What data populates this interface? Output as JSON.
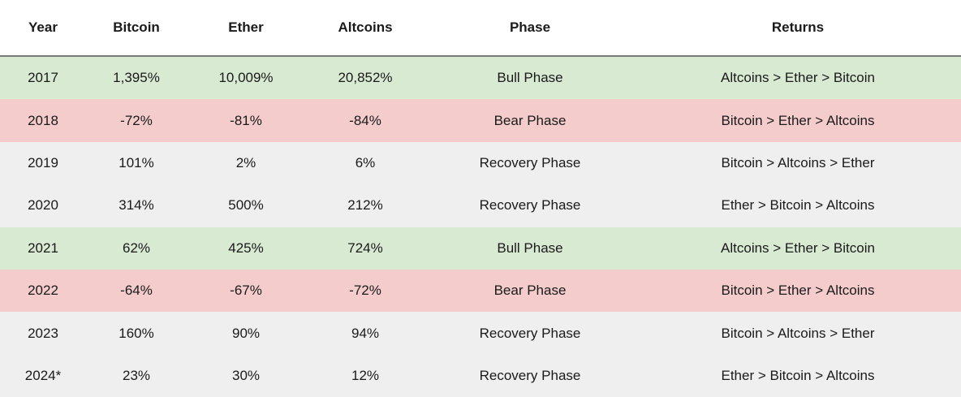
{
  "columns": [
    "Year",
    "Bitcoin",
    "Ether",
    "Altcoins",
    "Phase",
    "Returns"
  ],
  "rows": [
    {
      "year": "2017",
      "bitcoin": "1,395%",
      "ether": "10,009%",
      "altcoins": "20,852%",
      "phase": "Bull Phase",
      "returns": "Altcoins > Ether > Bitcoin"
    },
    {
      "year": "2018",
      "bitcoin": "-72%",
      "ether": "-81%",
      "altcoins": "-84%",
      "phase": "Bear Phase",
      "returns": "Bitcoin > Ether > Altcoins"
    },
    {
      "year": "2019",
      "bitcoin": "101%",
      "ether": "2%",
      "altcoins": "6%",
      "phase": "Recovery Phase",
      "returns": "Bitcoin > Altcoins > Ether"
    },
    {
      "year": "2020",
      "bitcoin": "314%",
      "ether": "500%",
      "altcoins": "212%",
      "phase": "Recovery Phase",
      "returns": "Ether > Bitcoin > Altcoins"
    },
    {
      "year": "2021",
      "bitcoin": "62%",
      "ether": "425%",
      "altcoins": "724%",
      "phase": "Bull Phase",
      "returns": "Altcoins > Ether > Bitcoin"
    },
    {
      "year": "2022",
      "bitcoin": "-64%",
      "ether": "-67%",
      "altcoins": "-72%",
      "phase": "Bear Phase",
      "returns": "Bitcoin > Ether > Altcoins"
    },
    {
      "year": "2023",
      "bitcoin": "160%",
      "ether": "90%",
      "altcoins": "94%",
      "phase": "Recovery Phase",
      "returns": "Bitcoin > Altcoins > Ether"
    },
    {
      "year": "2024*",
      "bitcoin": "23%",
      "ether": "30%",
      "altcoins": "12%",
      "phase": "Recovery Phase",
      "returns": "Ether > Bitcoin > Altcoins"
    }
  ],
  "colors": {
    "bull": "#d9ead3",
    "bear": "#f4cccc",
    "recovery": "#efefef",
    "header_rule": "#7a7a7a"
  },
  "chart_data": {
    "type": "table",
    "columns": [
      "Year",
      "Bitcoin",
      "Ether",
      "Altcoins",
      "Phase",
      "Returns"
    ],
    "rows": [
      [
        "2017",
        "1,395%",
        "10,009%",
        "20,852%",
        "Bull Phase",
        "Altcoins > Ether > Bitcoin"
      ],
      [
        "2018",
        "-72%",
        "-81%",
        "-84%",
        "Bear Phase",
        "Bitcoin > Ether > Altcoins"
      ],
      [
        "2019",
        "101%",
        "2%",
        "6%",
        "Recovery Phase",
        "Bitcoin > Altcoins > Ether"
      ],
      [
        "2020",
        "314%",
        "500%",
        "212%",
        "Recovery Phase",
        "Ether > Bitcoin > Altcoins"
      ],
      [
        "2021",
        "62%",
        "425%",
        "724%",
        "Bull Phase",
        "Altcoins > Ether > Bitcoin"
      ],
      [
        "2022",
        "-64%",
        "-67%",
        "-72%",
        "Bear Phase",
        "Bitcoin > Ether > Altcoins"
      ],
      [
        "2023",
        "160%",
        "90%",
        "94%",
        "Recovery Phase",
        "Bitcoin > Altcoins > Ether"
      ],
      [
        "2024*",
        "23%",
        "30%",
        "12%",
        "Recovery Phase",
        "Ether > Bitcoin > Altcoins"
      ]
    ]
  }
}
